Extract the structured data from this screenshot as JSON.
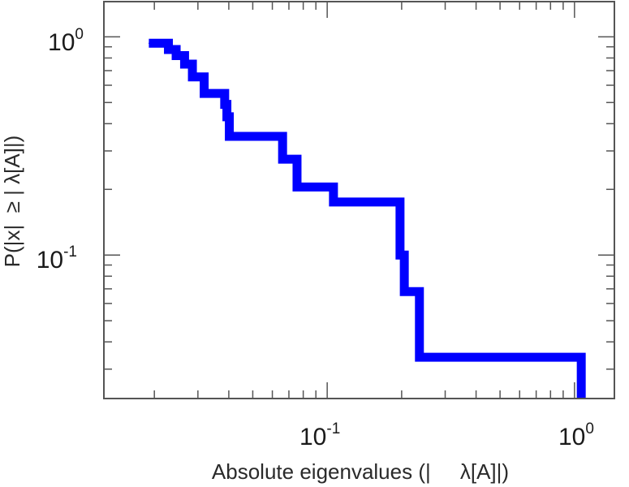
{
  "chart_data": {
    "type": "line",
    "subtype": "step-ccdf",
    "xscale": "log",
    "yscale": "log",
    "xlim": [
      0.0125,
      1.45
    ],
    "ylim": [
      0.022,
      1.45
    ],
    "grid": false,
    "legend": "none",
    "xlabel": "Absolute eigenvalues (|     λ[A]|)",
    "ylabel": "P(|x|  ≥ | λ[A]|)",
    "xticks": [
      {
        "base": "10",
        "exp": "-1",
        "value": 0.1
      },
      {
        "base": "10",
        "exp": "0",
        "value": 1
      }
    ],
    "yticks": [
      {
        "base": "10",
        "exp": "-1",
        "value": 0.1
      },
      {
        "base": "10",
        "exp": "0",
        "value": 1
      }
    ],
    "series": [
      {
        "color": "#0000ff",
        "x": [
          0.019,
          0.0228,
          0.0228,
          0.0245,
          0.0245,
          0.0265,
          0.0265,
          0.0285,
          0.0285,
          0.0318,
          0.0318,
          0.0385,
          0.0385,
          0.0393,
          0.0393,
          0.0402,
          0.0402,
          0.0415,
          0.0415,
          0.066,
          0.066,
          0.0755,
          0.0755,
          0.106,
          0.106,
          0.197,
          0.197,
          0.205,
          0.205,
          0.236,
          0.236,
          1.065,
          1.065
        ],
        "y": [
          0.935,
          0.935,
          0.875,
          0.875,
          0.82,
          0.82,
          0.75,
          0.75,
          0.655,
          0.655,
          0.55,
          0.55,
          0.49,
          0.49,
          0.43,
          0.43,
          0.35,
          0.35,
          0.35,
          0.35,
          0.275,
          0.275,
          0.205,
          0.205,
          0.175,
          0.175,
          0.1,
          0.1,
          0.068,
          0.068,
          0.034,
          0.034,
          0.022
        ]
      }
    ]
  }
}
